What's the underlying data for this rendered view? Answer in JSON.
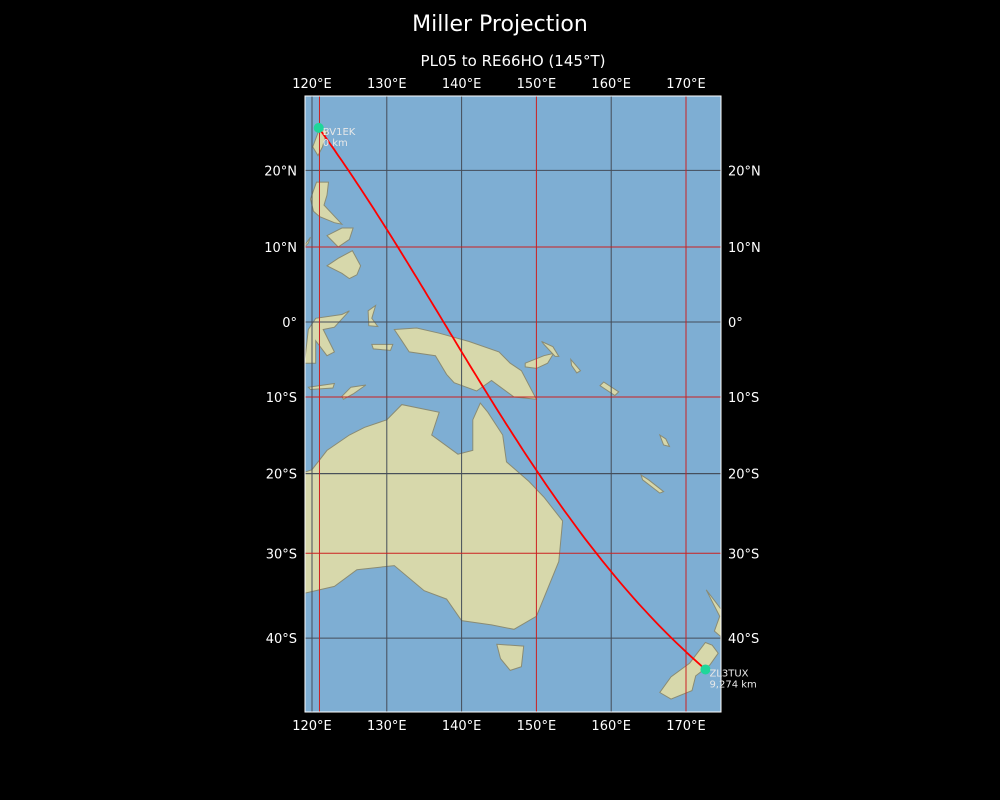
{
  "title": "Miller Projection",
  "subtitle": "PL05 to RE66HO (145°T)",
  "colors": {
    "background": "#000000",
    "ocean": "#7eaed3",
    "land": "#dcdba9",
    "path": "#ff0000",
    "grid_major": "#cc2020",
    "grid_minor": "#444c58",
    "station": "#1fd69a"
  },
  "map": {
    "projection": "Miller",
    "lon_range": [
      119,
      174.7
    ],
    "lat_range": [
      -48.7,
      29.3
    ],
    "lon_ticks": [
      "120°E",
      "130°E",
      "140°E",
      "150°E",
      "160°E",
      "170°E"
    ],
    "lon_tick_values": [
      120,
      130,
      140,
      150,
      160,
      170
    ],
    "lat_ticks": [
      "20°N",
      "10°N",
      "0°",
      "10°S",
      "20°S",
      "30°S",
      "40°S"
    ],
    "lat_tick_values": [
      20,
      10,
      0,
      -10,
      -20,
      -30,
      -40
    ],
    "red_meridians": [
      121,
      150,
      170
    ],
    "red_parallels": [
      10,
      -10,
      -30
    ]
  },
  "stations": [
    {
      "call": "BV1EK",
      "distance": "0 km",
      "lon": 120.9,
      "lat": 25.4
    },
    {
      "call": "ZL3TUX",
      "distance": "9,274 km",
      "lon": 172.6,
      "lat": -43.5
    }
  ]
}
